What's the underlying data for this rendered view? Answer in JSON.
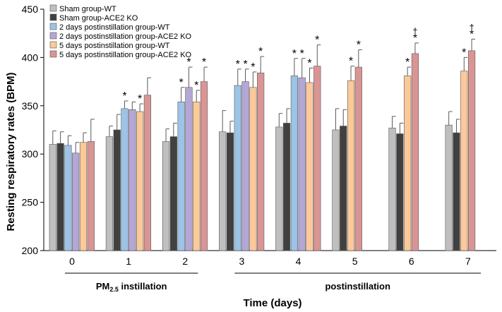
{
  "chart_data": {
    "type": "bar",
    "ylabel": "Resting respiratory rates (BPM)",
    "xlabel": "Time (days)",
    "ylim": [
      200,
      450
    ],
    "yticks": [
      200,
      250,
      300,
      350,
      400,
      450
    ],
    "categories": [
      "0",
      "1",
      "2",
      "3",
      "4",
      "5",
      "6",
      "7"
    ],
    "legend_position": "top-left",
    "phases": [
      {
        "label_main": "PM",
        "label_sub": "2.5",
        "label_rest": " instillation",
        "from": 0,
        "to": 2
      },
      {
        "label_main": "postinstillation",
        "label_sub": "",
        "label_rest": "",
        "from": 3,
        "to": 7
      }
    ],
    "series": [
      {
        "name": "Sham group-WT",
        "color": "#bfbfbf",
        "values": [
          310,
          318,
          313,
          323,
          328,
          325,
          327,
          330
        ],
        "errors": [
          14,
          11,
          13,
          22,
          14,
          22,
          12,
          14
        ],
        "marks": [
          "",
          "",
          "",
          "",
          "",
          "",
          "",
          ""
        ]
      },
      {
        "name": "Sham group-ACE2 KO",
        "color": "#404040",
        "values": [
          311,
          325,
          318,
          322,
          332,
          329,
          321,
          322
        ],
        "errors": [
          12,
          16,
          14,
          12,
          15,
          17,
          11,
          14
        ],
        "marks": [
          "",
          "",
          "",
          "",
          "",
          "",
          "",
          ""
        ]
      },
      {
        "name": "2 days postinstillation group-WT",
        "color": "#9dc3e6",
        "values": [
          309,
          347,
          354,
          371,
          381,
          null,
          null,
          null
        ],
        "errors": [
          10,
          8,
          15,
          17,
          18,
          null,
          null,
          null
        ],
        "marks": [
          "",
          "*",
          "*",
          "*",
          "*",
          "",
          "",
          ""
        ]
      },
      {
        "name": "2 days postinstillation group-ACE2 KO",
        "color": "#b4a7d6",
        "values": [
          301,
          346,
          369,
          375,
          379,
          null,
          null,
          null
        ],
        "errors": [
          11,
          8,
          21,
          13,
          20,
          null,
          null,
          null
        ],
        "marks": [
          "",
          "",
          "*",
          "*",
          "*",
          "",
          "",
          ""
        ]
      },
      {
        "name": "5 days postinstillation group-WT",
        "color": "#fbc99a",
        "values": [
          312,
          344,
          354,
          369,
          374,
          376,
          381,
          386
        ],
        "errors": [
          10,
          8,
          12,
          16,
          15,
          15,
          9,
          14
        ],
        "marks": [
          "",
          "*",
          "*",
          "*",
          "*",
          "*",
          "*",
          "*"
        ]
      },
      {
        "name": "5 days postinstillation group-ACE2 KO",
        "color": "#d99594",
        "values": [
          313,
          361,
          375,
          384,
          391,
          390,
          404,
          407
        ],
        "errors": [
          23,
          18,
          15,
          17,
          22,
          18,
          11,
          12
        ],
        "marks": [
          "",
          "",
          "*",
          "*",
          "*",
          "*",
          "*",
          "*"
        ],
        "extra_marks": [
          "",
          "",
          "",
          "",
          "",
          "",
          "†",
          "†"
        ]
      }
    ]
  }
}
